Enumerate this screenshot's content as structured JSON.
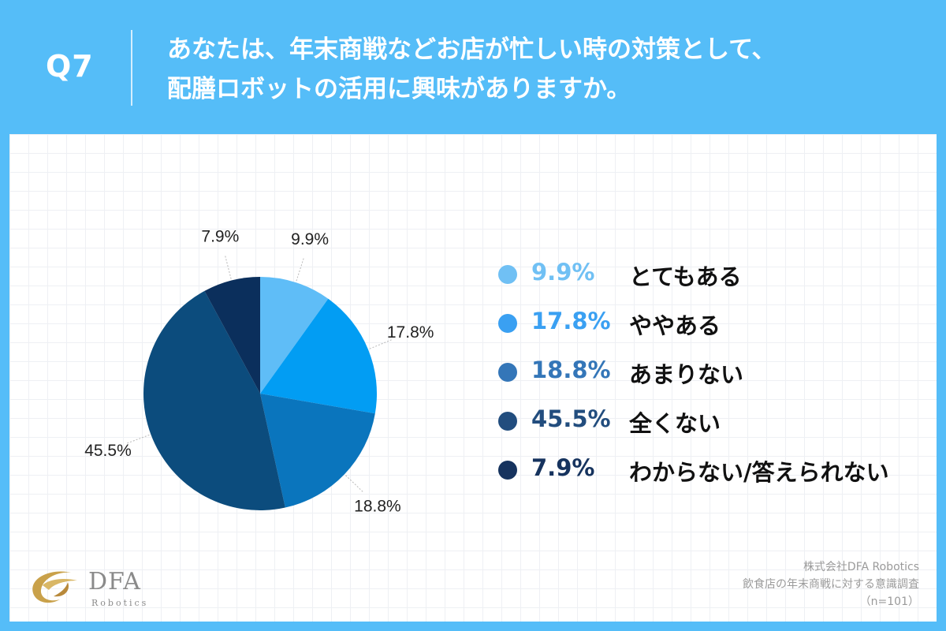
{
  "question": {
    "number": "Q7",
    "line1": "あなたは、年末商戦などお店が忙しい時の対策として、",
    "line2": "配膳ロボットの活用に興味がありますか。"
  },
  "chart_data": {
    "type": "pie",
    "start": "12 o'clock, clockwise",
    "slices": [
      {
        "label": "とてもある",
        "value": 9.9,
        "display": "9.9%",
        "color": "#5fbdf7"
      },
      {
        "label": "ややある",
        "value": 17.8,
        "display": "17.8%",
        "color": "#029df3"
      },
      {
        "label": "あまりない",
        "value": 18.8,
        "display": "18.8%",
        "color": "#0a75bd"
      },
      {
        "label": "全くない",
        "value": 45.5,
        "display": "45.5%",
        "color": "#0c4c7d"
      },
      {
        "label": "わからない/答えられない",
        "value": 7.9,
        "display": "7.9%",
        "color": "#0b2f5c"
      }
    ],
    "legend_position": "right"
  },
  "legend": [
    {
      "pct": "9.9%",
      "label": "とてもある",
      "color": "#70c0f4",
      "pct_color": "#70c0f4"
    },
    {
      "pct": "17.8%",
      "label": "ややある",
      "color": "#3aa0f2",
      "pct_color": "#3aa0f2"
    },
    {
      "pct": "18.8%",
      "label": "あまりない",
      "color": "#3476b8",
      "pct_color": "#3476b8"
    },
    {
      "pct": "45.5%",
      "label": "全くない",
      "color": "#224d7e",
      "pct_color": "#224d7e"
    },
    {
      "pct": "7.9%",
      "label": "わからない/答えられない",
      "color": "#16335e",
      "pct_color": "#16335e"
    }
  ],
  "logo": {
    "name": "DFA",
    "sub": "Robotics"
  },
  "source": {
    "company": "株式会社DFA Robotics",
    "survey": "飲食店の年末商戦に対する意識調査",
    "sample": "（n=101）"
  },
  "colors": {
    "background": "#55bdf8",
    "panel": "#ffffff",
    "logo_gold": "#c9a14a"
  }
}
